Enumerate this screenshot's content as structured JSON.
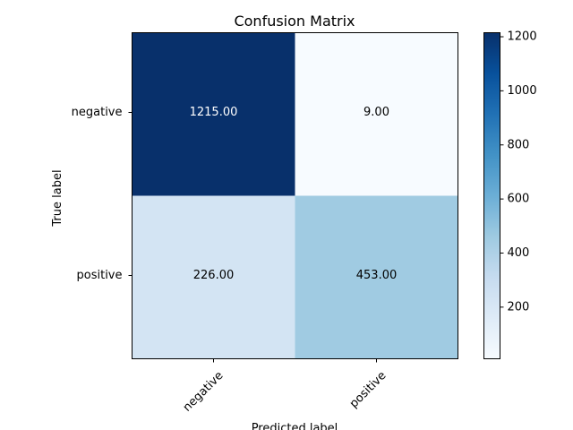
{
  "chart_data": {
    "type": "heatmap",
    "title": "Confusion Matrix",
    "xlabel": "Predicted label",
    "ylabel": "True label",
    "x_categories": [
      "negative",
      "positive"
    ],
    "y_categories": [
      "negative",
      "positive"
    ],
    "values": [
      [
        1215,
        9
      ],
      [
        226,
        453
      ]
    ],
    "cell_labels": [
      [
        "1215.00",
        "9.00"
      ],
      [
        "226.00",
        "453.00"
      ]
    ],
    "colormap": "Blues",
    "color_range": [
      9,
      1215
    ],
    "colorbar_ticks": [
      "200",
      "400",
      "600",
      "800",
      "1000",
      "1200"
    ],
    "colorbar_tick_values": [
      200,
      400,
      600,
      800,
      1000,
      1200
    ],
    "grid": false
  }
}
